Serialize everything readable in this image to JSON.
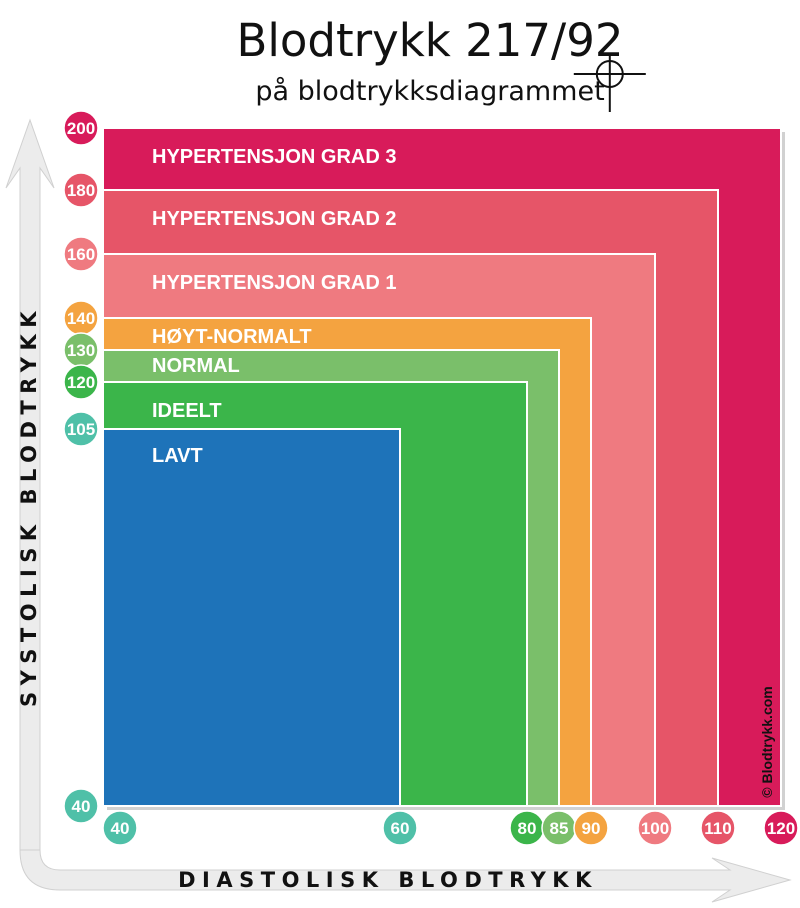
{
  "title": "Blodtrykk 217/92",
  "subtitle": "på blodtrykksdiagrammet",
  "credit": "© Blodtrykk.com",
  "chart_data": {
    "type": "area",
    "xlabel": "DIASTOLISK BLODTRYKK",
    "ylabel": "SYSTOLISK BLODTRYKK",
    "x_ticks": [
      {
        "label": "40",
        "value": 40,
        "color": "#4fc0a8"
      },
      {
        "label": "60",
        "value": 60,
        "color": "#4fc0a8"
      },
      {
        "label": "80",
        "value": 80,
        "color": "#3bb54a"
      },
      {
        "label": "85",
        "value": 85,
        "color": "#7abf6a"
      },
      {
        "label": "90",
        "value": 90,
        "color": "#f4a340"
      },
      {
        "label": "100",
        "value": 100,
        "color": "#ef7a80"
      },
      {
        "label": "110",
        "value": 110,
        "color": "#e65568"
      },
      {
        "label": "120",
        "value": 120,
        "color": "#d81b5a"
      }
    ],
    "y_ticks": [
      {
        "label": "200",
        "value": 200,
        "color": "#d81b5a"
      },
      {
        "label": "180",
        "value": 180,
        "color": "#e65568"
      },
      {
        "label": "160",
        "value": 160,
        "color": "#ef7a80"
      },
      {
        "label": "140",
        "value": 140,
        "color": "#f4a340"
      },
      {
        "label": "130",
        "value": 130,
        "color": "#7abf6a"
      },
      {
        "label": "120",
        "value": 120,
        "color": "#3bb54a"
      },
      {
        "label": "105",
        "value": 105,
        "color": "#4fc0a8"
      },
      {
        "label": "40",
        "value": 40,
        "color": "#4fc0a8"
      }
    ],
    "zones": [
      {
        "label": "HYPERTENSJON GRAD 3",
        "max_diastolic": 120,
        "max_systolic": 200,
        "color": "#d81b5a"
      },
      {
        "label": "HYPERTENSJON GRAD 2",
        "max_diastolic": 110,
        "max_systolic": 180,
        "color": "#e65568"
      },
      {
        "label": "HYPERTENSJON GRAD 1",
        "max_diastolic": 100,
        "max_systolic": 160,
        "color": "#ef7a80"
      },
      {
        "label": "HØYT-NORMALT",
        "max_diastolic": 90,
        "max_systolic": 140,
        "color": "#f4a340"
      },
      {
        "label": "NORMAL",
        "max_diastolic": 85,
        "max_systolic": 130,
        "color": "#7abf6a"
      },
      {
        "label": "IDEELT",
        "max_diastolic": 80,
        "max_systolic": 120,
        "color": "#3bb54a"
      },
      {
        "label": "LAVT",
        "max_diastolic": 60,
        "max_systolic": 105,
        "color": "#1e73b9"
      }
    ],
    "marker": {
      "diastolic": 92,
      "systolic": 217
    }
  }
}
